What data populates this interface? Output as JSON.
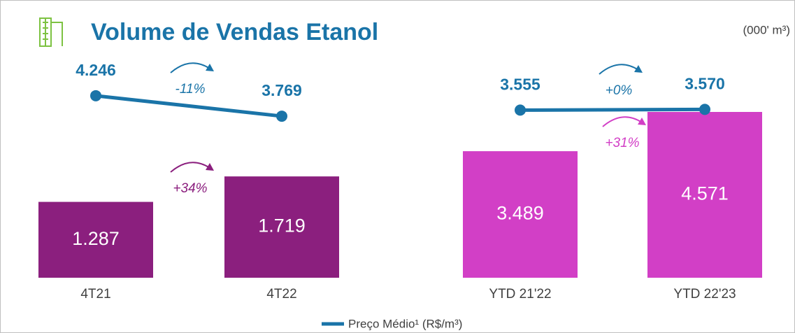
{
  "header": {
    "title": "Volume de Vendas Etanol",
    "unit": "(000' m³)"
  },
  "chart_data": [
    {
      "type": "bar",
      "categories": [
        "4T21",
        "4T22"
      ],
      "ylim": [
        0,
        4000
      ],
      "y2lim": [
        0,
        5500
      ],
      "series": [
        {
          "color": "#8b1f7e",
          "values": [
            1287,
            1719
          ],
          "value_labels": [
            "1.287",
            "1.719"
          ]
        },
        {
          "name": "Preço Médio¹ (R$/m³)",
          "type": "line",
          "axis": "y2",
          "color": "#1a74a8",
          "values": [
            4246,
            3769
          ],
          "value_labels": [
            "4.246",
            "3.769"
          ]
        }
      ],
      "annotations": [
        "-11%",
        "+34%"
      ]
    },
    {
      "type": "bar",
      "categories": [
        "YTD 21'22",
        "YTD 22'23"
      ],
      "ylim": [
        0,
        6500
      ],
      "y2lim": [
        0,
        5000
      ],
      "series": [
        {
          "color": "#d23fc6",
          "values": [
            3489,
            4571
          ],
          "value_labels": [
            "3.489",
            "4.571"
          ]
        },
        {
          "type": "line",
          "axis": "y2",
          "color": "#1a74a8",
          "values": [
            3555,
            3570
          ],
          "value_labels": [
            "3.555",
            "3.570"
          ]
        }
      ],
      "annotations": [
        "+0%",
        "+31%"
      ]
    }
  ]
}
